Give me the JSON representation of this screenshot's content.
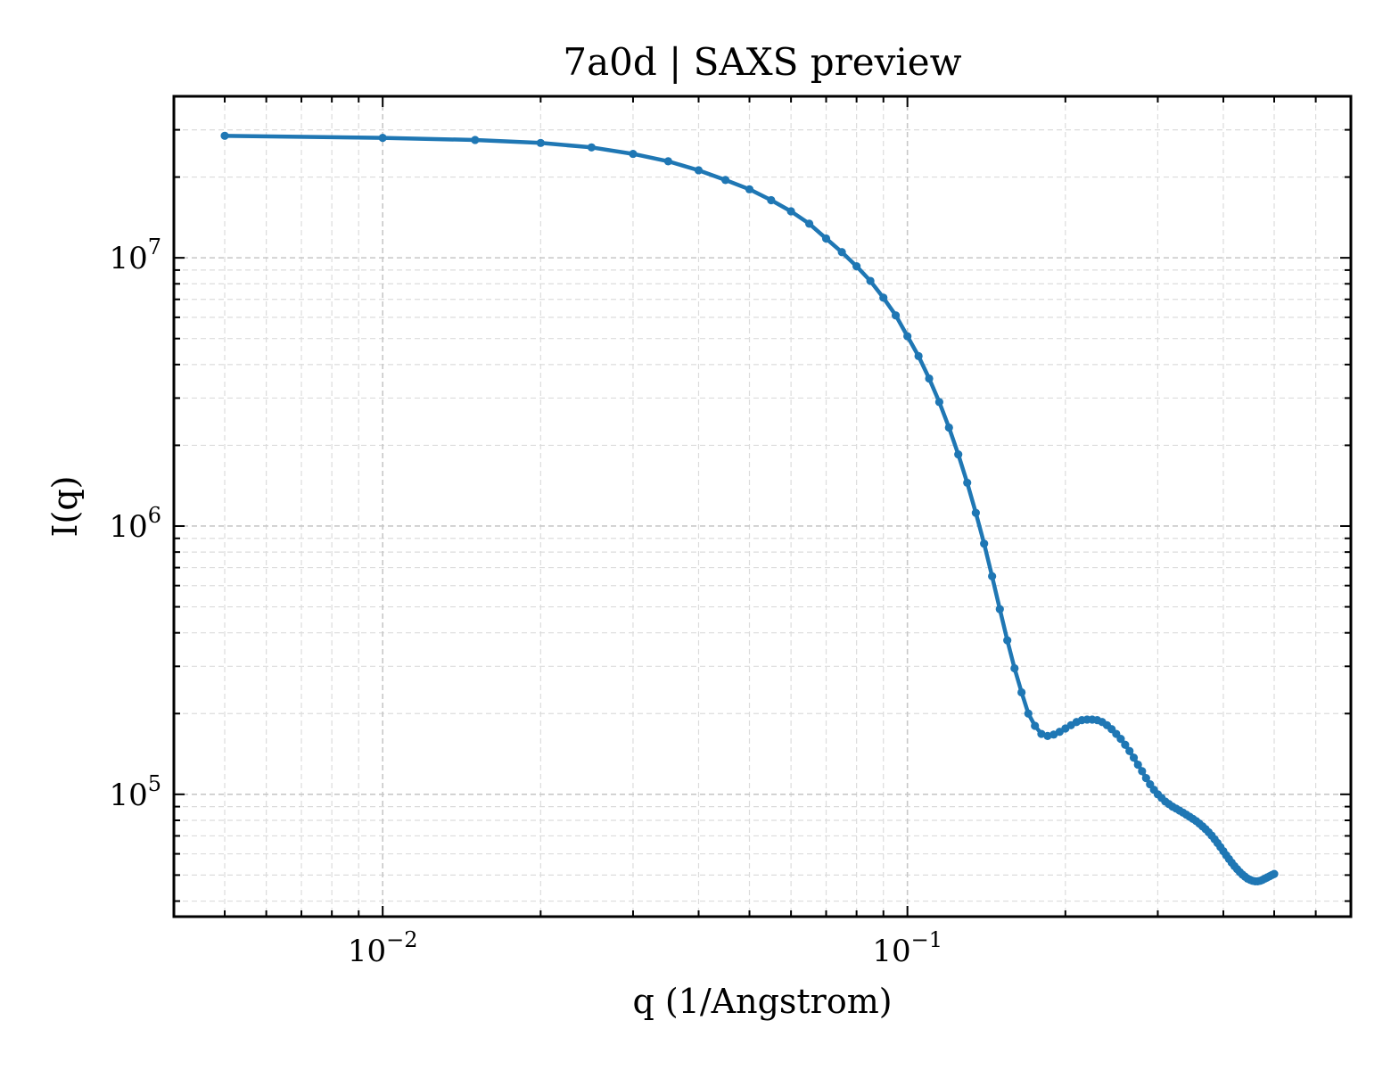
{
  "chart_data": {
    "type": "line",
    "title": "7a0d | SAXS preview",
    "xlabel": "q (1/Angstrom)",
    "ylabel": "I(q)",
    "xscale": "log",
    "yscale": "log",
    "xlim": [
      0.004,
      0.7
    ],
    "ylim": [
      35000,
      40000000
    ],
    "grid": true,
    "x_ticks": [
      {
        "base": "10",
        "exp": "−2",
        "value": 0.01
      },
      {
        "base": "10",
        "exp": "−1",
        "value": 0.1
      }
    ],
    "y_ticks": [
      {
        "base": "10",
        "exp": "5",
        "value": 100000
      },
      {
        "base": "10",
        "exp": "6",
        "value": 1000000
      },
      {
        "base": "10",
        "exp": "7",
        "value": 10000000
      }
    ],
    "line_color": "#1f77b4",
    "series": [
      {
        "x": [
          0.005,
          0.01,
          0.015,
          0.02,
          0.025,
          0.03,
          0.035,
          0.04,
          0.045,
          0.05,
          0.055,
          0.06,
          0.065,
          0.07,
          0.075,
          0.08,
          0.085,
          0.09,
          0.095,
          0.1,
          0.105,
          0.11,
          0.115,
          0.12,
          0.125,
          0.13,
          0.135,
          0.14,
          0.145,
          0.15,
          0.155,
          0.16,
          0.165,
          0.17,
          0.175,
          0.18,
          0.185,
          0.19,
          0.195,
          0.2,
          0.205,
          0.21,
          0.215,
          0.22,
          0.225,
          0.23,
          0.235,
          0.24,
          0.245,
          0.25,
          0.255,
          0.26,
          0.265,
          0.27,
          0.275,
          0.28,
          0.285,
          0.29,
          0.295,
          0.3,
          0.305,
          0.31,
          0.315,
          0.32,
          0.325,
          0.33,
          0.335,
          0.34,
          0.345,
          0.35,
          0.355,
          0.36,
          0.365,
          0.37,
          0.375,
          0.38,
          0.385,
          0.39,
          0.395,
          0.4,
          0.405,
          0.41,
          0.415,
          0.42,
          0.425,
          0.43,
          0.435,
          0.44,
          0.445,
          0.45,
          0.455,
          0.46,
          0.465,
          0.47,
          0.475,
          0.48,
          0.485,
          0.49,
          0.495,
          0.5
        ],
        "y": [
          28500000,
          28000000,
          27500000,
          26800000,
          25800000,
          24400000,
          22900000,
          21200000,
          19500000,
          18000000,
          16400000,
          14900000,
          13400000,
          11800000,
          10500000,
          9300000,
          8200000,
          7100000,
          6100000,
          5100000,
          4300000,
          3550000,
          2900000,
          2330000,
          1850000,
          1450000,
          1120000,
          860000,
          650000,
          490000,
          375000,
          295000,
          240000,
          200000,
          180000,
          168000,
          165000,
          167000,
          171000,
          176000,
          181000,
          186000,
          189000,
          190000,
          190000,
          189000,
          186000,
          181000,
          175000,
          168000,
          161000,
          153000,
          145000,
          137000,
          129000,
          122000,
          115000,
          109000,
          104000,
          100000,
          97000,
          94000,
          92000,
          90000,
          88500,
          87000,
          85500,
          84000,
          82500,
          81000,
          79500,
          77800,
          76000,
          74200,
          72200,
          70200,
          68000,
          65800,
          63600,
          61400,
          59300,
          57400,
          55600,
          54000,
          52600,
          51300,
          50200,
          49300,
          48500,
          48000,
          47600,
          47400,
          47400,
          47600,
          48000,
          48500,
          49000,
          49500,
          50000,
          50500
        ]
      }
    ]
  }
}
